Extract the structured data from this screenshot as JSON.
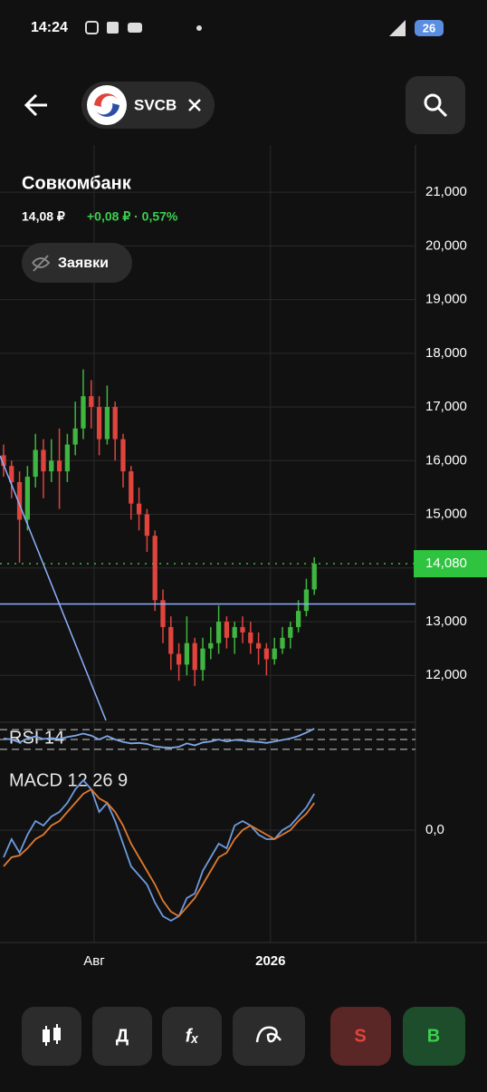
{
  "status_bar": {
    "time": "14:24",
    "battery": "26"
  },
  "header": {
    "ticker": "SVCB",
    "company": "Совкомбанк",
    "price": "14,08 ₽",
    "change": "+0,08 ₽ · 0,57%",
    "orders_button": "Заявки"
  },
  "chart_data": [
    {
      "type": "candlestick",
      "x": [
        0,
        1,
        2,
        3,
        4,
        5,
        6,
        7,
        8,
        9,
        10,
        11,
        12,
        13,
        14,
        15,
        16,
        17,
        18,
        19,
        20,
        21,
        22,
        23,
        24,
        25,
        26,
        27,
        28,
        29,
        30,
        31,
        32,
        33,
        34,
        35,
        36,
        37,
        38,
        39
      ],
      "open": [
        16.1,
        15.9,
        15.6,
        14.9,
        15.7,
        16.2,
        15.8,
        16.0,
        15.8,
        16.3,
        16.6,
        17.2,
        17.0,
        16.4,
        17.0,
        16.4,
        15.8,
        15.2,
        15.0,
        14.6,
        13.4,
        12.9,
        12.4,
        12.2,
        12.6,
        12.1,
        12.5,
        12.6,
        13.0,
        12.7,
        12.9,
        12.8,
        12.6,
        12.5,
        12.3,
        12.5,
        12.7,
        12.9,
        13.2,
        13.6
      ],
      "high": [
        16.3,
        16.0,
        15.8,
        15.9,
        16.5,
        16.4,
        16.4,
        16.6,
        16.5,
        17.1,
        17.7,
        17.5,
        17.2,
        17.4,
        17.1,
        16.5,
        15.9,
        15.5,
        15.1,
        14.7,
        13.6,
        13.1,
        12.6,
        13.1,
        12.7,
        12.7,
        12.9,
        13.3,
        13.1,
        13.0,
        13.1,
        13.0,
        12.8,
        12.6,
        12.7,
        12.9,
        13.0,
        13.4,
        13.8,
        14.2
      ],
      "low": [
        15.7,
        15.3,
        14.1,
        14.7,
        15.5,
        15.3,
        15.6,
        15.1,
        15.6,
        16.1,
        16.4,
        16.6,
        16.1,
        16.3,
        16.0,
        15.5,
        14.9,
        14.7,
        14.3,
        13.2,
        12.6,
        12.1,
        11.9,
        12.0,
        11.8,
        11.9,
        12.3,
        12.4,
        12.5,
        12.4,
        12.6,
        12.4,
        12.2,
        12.0,
        12.2,
        12.4,
        12.5,
        12.8,
        13.1,
        13.5
      ],
      "close": [
        15.9,
        15.6,
        14.9,
        15.7,
        16.2,
        15.8,
        16.0,
        15.8,
        16.3,
        16.6,
        17.2,
        17.0,
        16.4,
        17.0,
        16.4,
        15.8,
        15.2,
        15.0,
        14.6,
        13.4,
        12.9,
        12.4,
        12.2,
        12.6,
        12.1,
        12.5,
        12.6,
        13.0,
        12.7,
        12.9,
        12.8,
        12.6,
        12.5,
        12.3,
        12.5,
        12.7,
        12.9,
        13.2,
        13.6,
        14.08
      ],
      "up_color": "#3fb63f",
      "down_color": "#e0443d",
      "xlim": [
        -0.45,
        51.7
      ],
      "ylim": [
        11.16,
        21.88
      ],
      "xticks": [
        {
          "value": 11.36,
          "label": "Авг"
        },
        {
          "value": 33.5,
          "label": "2026"
        }
      ],
      "yticks": [
        {
          "value": 12,
          "label": "12,000"
        },
        {
          "value": 13,
          "label": "13,000"
        },
        {
          "value": 14,
          "label": "14,000"
        },
        {
          "value": 15,
          "label": "15,000"
        },
        {
          "value": 16,
          "label": "16,000"
        },
        {
          "value": 17,
          "label": "17,000"
        },
        {
          "value": 18,
          "label": "18,000"
        },
        {
          "value": 19,
          "label": "19,000"
        },
        {
          "value": 20,
          "label": "20,000"
        },
        {
          "value": 21,
          "label": "21,000"
        }
      ],
      "last_price": {
        "value": 14.08,
        "label": "14,080"
      },
      "hline": 13.33,
      "trendline": {
        "x": [
          -0.45,
          12.85
        ],
        "y": [
          16.09,
          11.16
        ]
      },
      "drawing_color": "#8fb0ff",
      "grid": true
    },
    {
      "type": "line",
      "title": "RSI 14",
      "x": [
        0,
        1,
        2,
        3,
        4,
        5,
        6,
        7,
        8,
        9,
        10,
        11,
        12,
        13,
        14,
        15,
        16,
        17,
        18,
        19,
        20,
        21,
        22,
        23,
        24,
        25,
        26,
        27,
        28,
        29,
        30,
        31,
        32,
        33,
        34,
        35,
        36,
        37,
        38,
        39
      ],
      "series": [
        {
          "color": "#7fa8e8",
          "values": [
            52,
            50,
            44,
            52,
            56,
            51,
            53,
            51,
            55,
            58,
            62,
            58,
            50,
            57,
            50,
            45,
            42,
            43,
            41,
            36,
            34,
            33,
            35,
            42,
            38,
            44,
            46,
            50,
            46,
            49,
            48,
            46,
            45,
            43,
            46,
            49,
            52,
            57,
            64,
            72
          ]
        }
      ],
      "levels": [
        30,
        50,
        70
      ],
      "xlim": [
        -0.45,
        51.7
      ],
      "ylim": [
        15,
        85
      ]
    },
    {
      "type": "line",
      "title": "MACD 12 26 9",
      "x": [
        0,
        1,
        2,
        3,
        4,
        5,
        6,
        7,
        8,
        9,
        10,
        11,
        12,
        13,
        14,
        15,
        16,
        17,
        18,
        19,
        20,
        21,
        22,
        23,
        24,
        25,
        26,
        27,
        28,
        29,
        30,
        31,
        32,
        33,
        34,
        35,
        36,
        37,
        38,
        39
      ],
      "series": [
        {
          "color": "#6d9be0",
          "values": [
            -0.3,
            -0.1,
            -0.25,
            -0.05,
            0.1,
            0.05,
            0.15,
            0.2,
            0.3,
            0.45,
            0.55,
            0.45,
            0.2,
            0.3,
            0.1,
            -0.15,
            -0.4,
            -0.5,
            -0.6,
            -0.8,
            -0.95,
            -1.0,
            -0.95,
            -0.75,
            -0.7,
            -0.45,
            -0.3,
            -0.15,
            -0.2,
            0.05,
            0.1,
            0.05,
            -0.05,
            -0.1,
            -0.1,
            0.0,
            0.05,
            0.15,
            0.25,
            0.4
          ]
        },
        {
          "color": "#e07a2e",
          "values": [
            -0.4,
            -0.3,
            -0.28,
            -0.2,
            -0.1,
            -0.05,
            0.05,
            0.1,
            0.2,
            0.3,
            0.4,
            0.45,
            0.35,
            0.3,
            0.2,
            0.05,
            -0.15,
            -0.3,
            -0.45,
            -0.6,
            -0.78,
            -0.9,
            -0.95,
            -0.85,
            -0.75,
            -0.6,
            -0.45,
            -0.3,
            -0.25,
            -0.1,
            0.0,
            0.05,
            0.0,
            -0.05,
            -0.1,
            -0.05,
            0.0,
            0.1,
            0.18,
            0.3
          ]
        }
      ],
      "xlim": [
        -0.45,
        51.7
      ],
      "ylim": [
        -1.24,
        0.71
      ],
      "yticks": [
        {
          "value": 0,
          "label": "0,0"
        }
      ]
    }
  ],
  "toolbar": {
    "drawings": "Д",
    "indicators": "fₓ",
    "sell": "S",
    "buy": "B"
  }
}
